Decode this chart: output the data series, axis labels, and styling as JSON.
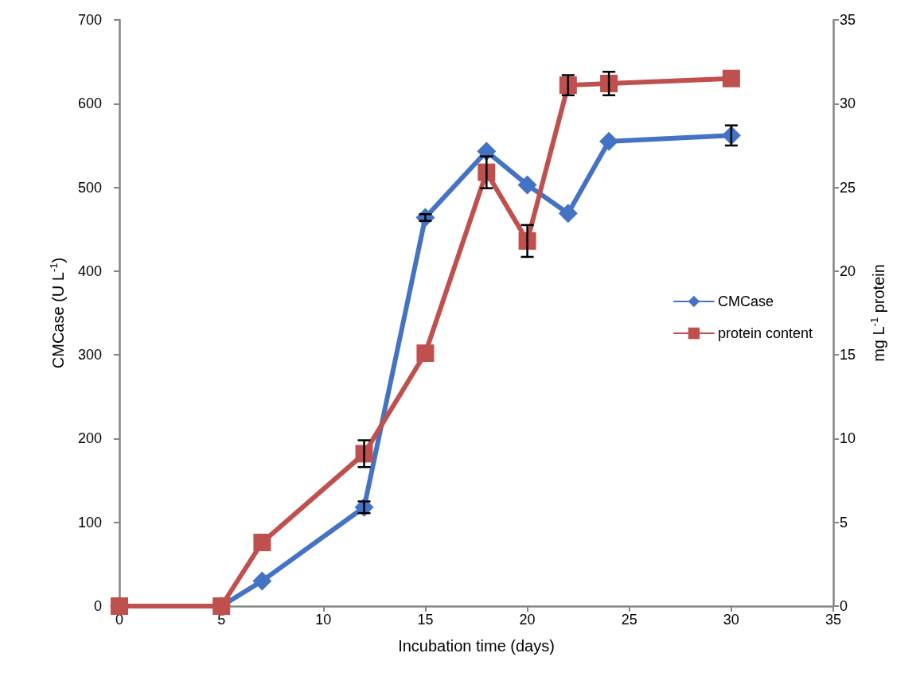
{
  "chart_data": {
    "type": "line",
    "xlabel": "Incubation time (days)",
    "ylabel": "CMCase (U L$^{-1}$)",
    "y2label": "mg L$^{-1}$ protein",
    "x": [
      0,
      5,
      7,
      12,
      15,
      18,
      20,
      22,
      24,
      30
    ],
    "series": [
      {
        "name": "CMCase",
        "color": "#4472c4",
        "marker": "diamond",
        "values": [
          0,
          0,
          30,
          118,
          464,
          543,
          503,
          469,
          555,
          562
        ],
        "errors": [
          null,
          null,
          null,
          7,
          4,
          null,
          null,
          null,
          null,
          12
        ]
      },
      {
        "name": "protein content",
        "color": "#c0504d",
        "marker": "square",
        "axis": "y2",
        "values": [
          0,
          0,
          3.8,
          9.1,
          15.1,
          25.9,
          21.8,
          31.1,
          31.2,
          31.5
        ],
        "errors": [
          null,
          null,
          null,
          0.8,
          null,
          0.95,
          0.95,
          0.6,
          0.7,
          null
        ]
      }
    ],
    "xlim": [
      0,
      35
    ],
    "xticks": [
      0,
      5,
      10,
      15,
      20,
      25,
      30,
      35
    ],
    "ylim": [
      0,
      700
    ],
    "yticks": [
      0,
      100,
      200,
      300,
      400,
      500,
      600,
      700
    ],
    "y2lim": [
      0,
      35
    ],
    "y2ticks": [
      0,
      5,
      10,
      15,
      20,
      25,
      30,
      35
    ],
    "grid": false,
    "legend": "right",
    "line_style": "solid"
  }
}
